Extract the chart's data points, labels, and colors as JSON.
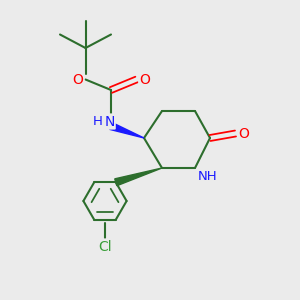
{
  "bg_color": "#ebebeb",
  "bond_color": "#2d6e2d",
  "bond_width": 1.5,
  "N_color": "#1a1aff",
  "O_color": "#ff0000",
  "Cl_color": "#3a9e3a",
  "figsize": [
    3.0,
    3.0
  ],
  "dpi": 100,
  "xlim": [
    0,
    10
  ],
  "ylim": [
    0,
    10
  ]
}
